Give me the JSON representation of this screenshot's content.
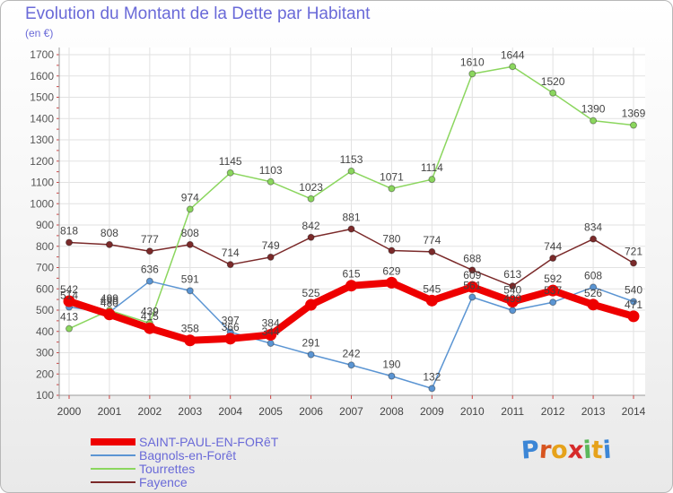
{
  "chart_data": {
    "type": "line",
    "title": "Evolution du Montant de la Dette par Habitant",
    "unit": "(en €)",
    "x": [
      "2000",
      "2001",
      "2002",
      "2003",
      "2004",
      "2005",
      "2006",
      "2007",
      "2008",
      "2009",
      "2010",
      "2011",
      "2012",
      "2013",
      "2014"
    ],
    "ylim": [
      100,
      1700
    ],
    "yticks": [
      100,
      200,
      300,
      400,
      500,
      600,
      700,
      800,
      900,
      1000,
      1100,
      1200,
      1300,
      1400,
      1500,
      1600,
      1700
    ],
    "grid": true,
    "legend_position": "bottom-left",
    "series": [
      {
        "name": "SAINT-PAUL-EN-FORêT",
        "color": "#ee0000",
        "values": [
          542,
          480,
          415,
          358,
          366,
          384,
          525,
          615,
          629,
          545,
          609,
          540,
          592,
          526,
          471
        ]
      },
      {
        "name": "Bagnols-en-Forêt",
        "color": "#5b95d3",
        "values": [
          514,
          490,
          636,
          591,
          397,
          344,
          291,
          242,
          190,
          132,
          561,
          499,
          537,
          608,
          540
        ]
      },
      {
        "name": "Tourrettes",
        "color": "#8bd65e",
        "values": [
          413,
          499,
          439,
          974,
          1145,
          1103,
          1023,
          1153,
          1071,
          1114,
          1610,
          1644,
          1520,
          1390,
          1369
        ]
      },
      {
        "name": "Fayence",
        "color": "#7b2a2a",
        "values": [
          818,
          808,
          777,
          808,
          714,
          749,
          842,
          881,
          780,
          774,
          688,
          613,
          744,
          834,
          721
        ]
      }
    ]
  },
  "logo": {
    "letters": [
      "P",
      "r",
      "o",
      "x",
      "i",
      "t",
      "i"
    ],
    "colors": [
      "#3c86d6",
      "#d7541f",
      "#e6a21b",
      "#d62b2b",
      "#5bb85b",
      "#e6a21b",
      "#3c86d6"
    ]
  }
}
